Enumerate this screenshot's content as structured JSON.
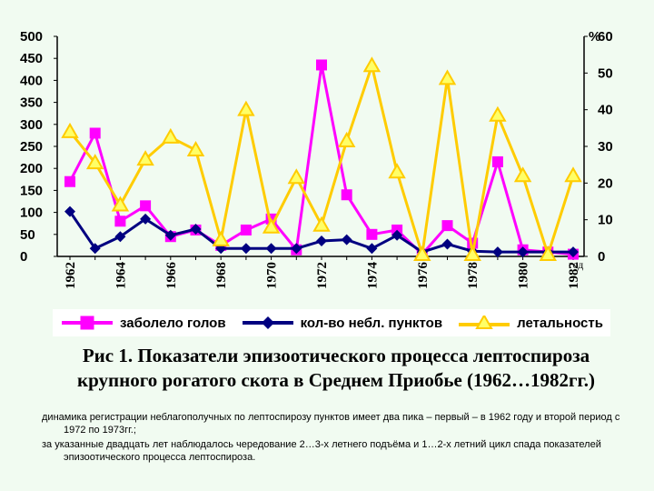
{
  "chart_data": {
    "type": "line",
    "x": [
      1962,
      1963,
      1964,
      1965,
      1966,
      1967,
      1968,
      1969,
      1970,
      1971,
      1972,
      1973,
      1974,
      1975,
      1976,
      1977,
      1978,
      1979,
      1980,
      1981,
      1982
    ],
    "x_tick_labels": [
      "1962",
      "1964",
      "1966",
      "1968",
      "1970",
      "1972",
      "1974",
      "1976",
      "1978",
      "1980",
      "1982"
    ],
    "x_axis_unit_label": "год",
    "left_axis": {
      "ticks": [
        "0",
        "50",
        "100",
        "150",
        "200",
        "250",
        "300",
        "350",
        "400",
        "450",
        "500"
      ],
      "ylim": [
        0,
        500
      ]
    },
    "right_axis": {
      "label": "%",
      "ticks": [
        "0",
        "10",
        "20",
        "30",
        "40",
        "50",
        "60"
      ],
      "ylim": [
        0,
        60
      ]
    },
    "series": [
      {
        "name": "заболело голов",
        "axis": "left",
        "color": "#ff00ff",
        "marker": "square",
        "values": [
          170,
          280,
          80,
          115,
          45,
          60,
          25,
          60,
          85,
          15,
          435,
          140,
          50,
          60,
          5,
          70,
          30,
          215,
          15,
          10,
          5
        ]
      },
      {
        "name": "кол-во небл. пунктов",
        "axis": "left",
        "color": "#000080",
        "marker": "diamond",
        "values": [
          102,
          18,
          45,
          85,
          48,
          62,
          18,
          18,
          18,
          18,
          35,
          38,
          18,
          48,
          10,
          28,
          12,
          10,
          10,
          10,
          10
        ]
      },
      {
        "name": "летальность",
        "axis": "right",
        "color": "#ffcc00",
        "marker": "triangle",
        "values": [
          34,
          25.5,
          14,
          26.5,
          32.5,
          29,
          4.5,
          40,
          8,
          21.5,
          8.5,
          31.5,
          52,
          23,
          0.5,
          48.5,
          0.5,
          38.5,
          22,
          0.5,
          22
        ]
      }
    ]
  },
  "caption": {
    "line1": "Рис 1. Показатели эпизоотического процесса лептоспироза",
    "line2": "крупного рогатого скота в Среднем Приобье (1962…1982гг.)"
  },
  "notes": [
    "динамика регистрации неблагополучных по лептоспирозу пунктов имеет два пика – первый – в 1962 году и второй период с 1972 по 1973гг.;",
    "за указанные двадцать лет наблюдалось чередование 2…3-х летнего подъёма и 1…2-х летний цикл спада показателей эпизоотического процесса лептоспироза."
  ]
}
